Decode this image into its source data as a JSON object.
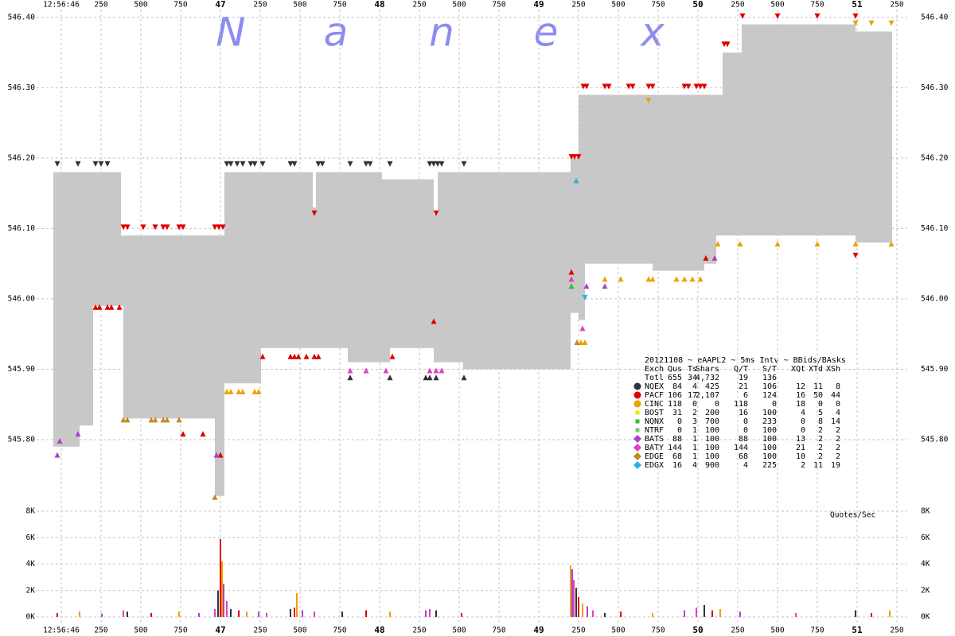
{
  "chart_data": [
    {
      "type": "quote-band",
      "title": "20121108 ~ eAAPL2 ~ 5ms Intv ~ BBids/BAsks",
      "watermark": [
        "N",
        "a",
        "n",
        "e",
        "x"
      ],
      "band_color": "#c8c8c8",
      "xlim": [
        45.815,
        51.315
      ],
      "xticks": [
        {
          "value": 46,
          "label": "12:56:46"
        },
        {
          "value": 46.25,
          "label": "250"
        },
        {
          "value": 46.5,
          "label": "500"
        },
        {
          "value": 46.75,
          "label": "750"
        },
        47,
        {
          "value": 47.25,
          "label": "250"
        },
        {
          "value": 47.5,
          "label": "500"
        },
        {
          "value": 47.75,
          "label": "750"
        },
        48,
        {
          "value": 48.25,
          "label": "250"
        },
        {
          "value": 48.5,
          "label": "500"
        },
        {
          "value": 48.75,
          "label": "750"
        },
        49,
        {
          "value": 49.25,
          "label": "250"
        },
        {
          "value": 49.5,
          "label": "500"
        },
        {
          "value": 49.75,
          "label": "750"
        },
        50,
        {
          "value": 50.25,
          "label": "250"
        },
        {
          "value": 50.5,
          "label": "500"
        },
        {
          "value": 50.75,
          "label": "750"
        },
        51,
        {
          "value": 51.25,
          "label": "250"
        }
      ],
      "ylim": [
        545.7,
        546.41
      ],
      "yticks": [
        {
          "value": 545.8,
          "label": "545.80"
        },
        {
          "value": 545.9,
          "label": "545.90"
        },
        {
          "value": 546.0,
          "label": "546.00"
        },
        {
          "value": 546.1,
          "label": "546.10"
        },
        {
          "value": 546.2,
          "label": "546.20"
        },
        {
          "value": 546.3,
          "label": "546.30"
        },
        {
          "value": 546.4,
          "label": "546.40"
        }
      ],
      "grid": true,
      "x": [
        45.95,
        46.115,
        46.2,
        46.375,
        46.39,
        46.965,
        47.025,
        47.255,
        47.58,
        47.6,
        47.8,
        48.015,
        48.065,
        48.34,
        48.365,
        48.525,
        49.2,
        49.25,
        49.29,
        49.715,
        50.04,
        50.115,
        50.155,
        50.275,
        50.99,
        51.215
      ],
      "bid": [
        545.79,
        545.82,
        545.99,
        545.99,
        545.83,
        545.72,
        545.88,
        545.93,
        545.93,
        545.93,
        545.91,
        545.91,
        545.93,
        545.91,
        545.91,
        545.9,
        545.98,
        545.97,
        546.05,
        546.04,
        546.05,
        546.09,
        546.09,
        546.09,
        546.08,
        546.08
      ],
      "ask": [
        546.18,
        546.18,
        546.18,
        546.09,
        546.09,
        546.09,
        546.18,
        546.18,
        546.13,
        546.18,
        546.18,
        546.17,
        546.17,
        546.12,
        546.18,
        546.18,
        546.2,
        546.29,
        546.29,
        546.29,
        546.29,
        546.29,
        546.35,
        546.39,
        546.38,
        546.38
      ],
      "columns": [
        "Exch",
        "Qus",
        "Ts",
        "Shars",
        "Q/T",
        "S/T",
        "XQt",
        "XTd",
        "XSh"
      ],
      "total": [
        "Totl",
        "655",
        "34",
        "4,732",
        "19",
        "136"
      ],
      "series": [
        {
          "name": "NQEX",
          "color": "#333333",
          "shape": "circle",
          "stats": [
            "84",
            "4",
            "425",
            "21",
            "106",
            "12",
            "11",
            "8"
          ],
          "ask_x": [
            45.975,
            46.105,
            46.215,
            46.25,
            46.29,
            47.04,
            47.065,
            47.105,
            47.14,
            47.19,
            47.215,
            47.265,
            47.44,
            47.465,
            47.615,
            47.64,
            47.815,
            47.915,
            47.94,
            48.065,
            48.315,
            48.34,
            48.365,
            48.39,
            48.53
          ],
          "ask_values": [
            546.19,
            546.19,
            546.19,
            546.19,
            546.19,
            546.19,
            546.19,
            546.19,
            546.19,
            546.19,
            546.19,
            546.19,
            546.19,
            546.19,
            546.19,
            546.19,
            546.19,
            546.19,
            546.19,
            546.19,
            546.19,
            546.19,
            546.19,
            546.19,
            546.19
          ],
          "bid_x": [
            47.815,
            48.065,
            48.29,
            48.315,
            48.355,
            48.53
          ],
          "bid_values": [
            545.89,
            545.89,
            545.89,
            545.89,
            545.89,
            545.89
          ]
        },
        {
          "name": "PACF",
          "color": "#e00000",
          "shape": "circle",
          "stats": [
            "106",
            "17",
            "2,107",
            "6",
            "124",
            "16",
            "50",
            "44"
          ],
          "ask_x": [
            46.39,
            46.415,
            46.515,
            46.59,
            46.64,
            46.665,
            46.74,
            46.765,
            46.965,
            46.99,
            47.015,
            47.59,
            48.355,
            49.205,
            49.225,
            49.25,
            49.28,
            49.3,
            49.415,
            49.44,
            49.565,
            49.59,
            49.69,
            49.715,
            49.915,
            49.94,
            49.99,
            50.015,
            50.04,
            50.165,
            50.185,
            50.28,
            50.5,
            50.75,
            50.99,
            50.99
          ],
          "ask_values": [
            546.1,
            546.1,
            546.1,
            546.1,
            546.1,
            546.1,
            546.1,
            546.1,
            546.1,
            546.1,
            546.1,
            546.12,
            546.12,
            546.2,
            546.2,
            546.2,
            546.3,
            546.3,
            546.3,
            546.3,
            546.3,
            546.3,
            546.3,
            546.3,
            546.3,
            546.3,
            546.3,
            546.3,
            546.3,
            546.36,
            546.36,
            546.4,
            546.4,
            546.4,
            546.4,
            546.06
          ],
          "bid_x": [
            46.215,
            46.24,
            46.29,
            46.315,
            46.365,
            46.765,
            46.89,
            47.0,
            47.265,
            47.44,
            47.465,
            47.49,
            47.54,
            47.59,
            47.615,
            48.08,
            48.34,
            49.205,
            50.05
          ],
          "bid_values": [
            545.99,
            545.99,
            545.99,
            545.99,
            545.99,
            545.81,
            545.81,
            545.78,
            545.92,
            545.92,
            545.92,
            545.92,
            545.92,
            545.92,
            545.92,
            545.92,
            545.97,
            546.04,
            546.06
          ]
        },
        {
          "name": "CINC",
          "color": "#f0a000",
          "shape": "circle",
          "stats": [
            "118",
            "0",
            "0",
            "118",
            "0",
            "18",
            "0",
            "0"
          ],
          "ask_x": [
            49.69,
            50.99,
            51.09,
            51.215
          ],
          "ask_values": [
            546.28,
            546.39,
            546.39,
            546.39
          ],
          "bid_x": [
            47.04,
            47.065,
            47.115,
            47.14,
            47.215,
            47.24,
            49.265,
            49.29,
            49.415,
            49.515,
            49.69,
            49.715,
            49.865,
            49.915,
            49.965,
            50.015,
            50.125,
            50.265,
            50.5,
            50.75,
            50.99,
            51.215
          ],
          "bid_values": [
            545.87,
            545.87,
            545.87,
            545.87,
            545.87,
            545.87,
            545.94,
            545.94,
            546.03,
            546.03,
            546.03,
            546.03,
            546.03,
            546.03,
            546.03,
            546.03,
            546.08,
            546.08,
            546.08,
            546.08,
            546.08,
            546.08
          ]
        },
        {
          "name": "BOST",
          "color": "#e8e800",
          "shape": "square",
          "stats": [
            "31",
            "2",
            "200",
            "16",
            "100",
            "4",
            "5",
            "4"
          ]
        },
        {
          "name": "NQNX",
          "color": "#30c030",
          "shape": "square",
          "stats": [
            "0",
            "3",
            "700",
            "0",
            "233",
            "0",
            "8",
            "14"
          ],
          "bid_x": [
            49.205
          ],
          "bid_values": [
            546.02
          ]
        },
        {
          "name": "NTRF",
          "color": "#80c080",
          "shape": "square",
          "stats": [
            "0",
            "1",
            "100",
            "0",
            "100",
            "0",
            "2",
            "2"
          ]
        },
        {
          "name": "BATS",
          "color": "#b040d0",
          "shape": "diamond",
          "stats": [
            "88",
            "1",
            "100",
            "88",
            "100",
            "13",
            "2",
            "2"
          ],
          "bid_x": [
            45.975,
            45.99,
            46.105,
            46.975,
            49.3,
            49.415,
            50.105
          ],
          "bid_values": [
            545.78,
            545.8,
            545.81,
            545.78,
            546.02,
            546.02,
            546.06
          ]
        },
        {
          "name": "BATY",
          "color": "#e040c0",
          "shape": "diamond",
          "stats": [
            "144",
            "1",
            "100",
            "144",
            "100",
            "21",
            "2",
            "2"
          ],
          "bid_x": [
            47.815,
            47.915,
            48.04,
            48.315,
            48.355,
            48.39,
            49.205,
            49.275
          ],
          "bid_values": [
            545.9,
            545.9,
            545.9,
            545.9,
            545.9,
            545.9,
            546.03,
            545.96
          ]
        },
        {
          "name": "EDGE",
          "color": "#c08a20",
          "shape": "diamond",
          "stats": [
            "68",
            "1",
            "100",
            "68",
            "100",
            "10",
            "2",
            "2"
          ],
          "bid_x": [
            46.39,
            46.415,
            46.565,
            46.59,
            46.64,
            46.665,
            46.74,
            46.965,
            49.24
          ],
          "bid_values": [
            545.83,
            545.83,
            545.83,
            545.83,
            545.83,
            545.83,
            545.83,
            545.72,
            545.94
          ]
        },
        {
          "name": "EDGX",
          "color": "#30b0e0",
          "shape": "diamond",
          "stats": [
            "16",
            "4",
            "900",
            "4",
            "225",
            "2",
            "11",
            "19"
          ],
          "bid_x": [
            49.235
          ],
          "bid_values": [
            546.17
          ],
          "ask_x": [
            49.29
          ],
          "ask_values": [
            546.0
          ]
        }
      ]
    },
    {
      "type": "bar",
      "title": "Quotes/Sec",
      "ylim": [
        0,
        8000
      ],
      "yticks": [
        {
          "value": 0,
          "label": "0K"
        },
        {
          "value": 2000,
          "label": "2K"
        },
        {
          "value": 4000,
          "label": "4K"
        },
        {
          "value": 6000,
          "label": "6K"
        },
        {
          "value": 8000,
          "label": "8K"
        }
      ],
      "palette": [
        "#e00000",
        "#f0a000",
        "#b040d0",
        "#e040c0",
        "#333333"
      ],
      "x": [
        45.975,
        46.115,
        46.255,
        46.39,
        46.415,
        46.565,
        46.74,
        46.865,
        46.965,
        46.985,
        47.0,
        47.01,
        47.02,
        47.04,
        47.065,
        47.115,
        47.165,
        47.24,
        47.29,
        47.44,
        47.465,
        47.48,
        47.515,
        47.59,
        47.765,
        47.915,
        48.065,
        48.29,
        48.315,
        48.355,
        48.515,
        49.2,
        49.21,
        49.22,
        49.235,
        49.25,
        49.275,
        49.305,
        49.34,
        49.415,
        49.515,
        49.715,
        49.915,
        49.99,
        50.04,
        50.09,
        50.14,
        50.265,
        50.615,
        50.99,
        51.09,
        51.205
      ],
      "values": [
        300,
        400,
        250,
        500,
        400,
        300,
        400,
        300,
        600,
        2000,
        5900,
        4200,
        2500,
        1200,
        600,
        500,
        400,
        400,
        300,
        600,
        700,
        1800,
        500,
        400,
        400,
        500,
        400,
        500,
        600,
        500,
        300,
        3900,
        3600,
        2800,
        2200,
        1500,
        1000,
        800,
        500,
        300,
        400,
        300,
        500,
        700,
        900,
        500,
        600,
        400,
        300,
        500,
        300,
        500
      ]
    }
  ]
}
